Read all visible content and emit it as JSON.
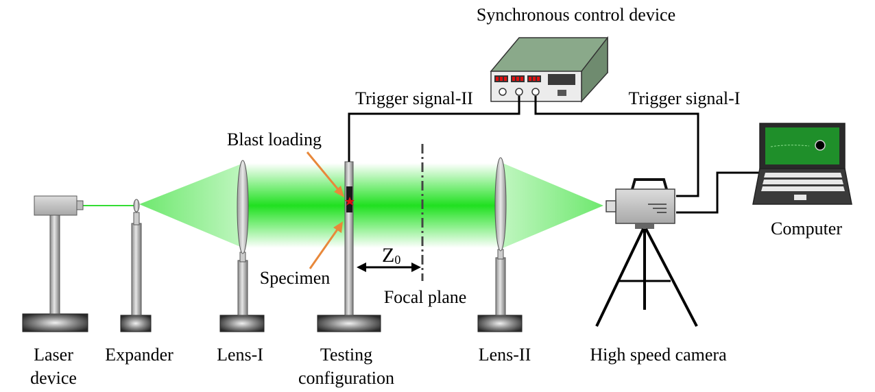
{
  "labels": {
    "sync_device": "Synchronous control device",
    "trigger_2": "Trigger signal-II",
    "trigger_1": "Trigger signal-I",
    "blast_loading": "Blast loading",
    "specimen": "Specimen",
    "z0_main": "Z",
    "z0_sub": "0",
    "focal_plane": "Focal plane",
    "computer": "Computer",
    "laser_line1": "Laser",
    "laser_line2": "device",
    "expander": "Expander",
    "lens1": "Lens-I",
    "testing_line1": "Testing",
    "testing_line2": "configuration",
    "lens2": "Lens-II",
    "camera": "High speed camera"
  },
  "colors": {
    "beam_green": "#33dd33",
    "beam_core": "#00e000",
    "arrow_orange": "#e8883a",
    "led_red": "#e01010",
    "screen_green": "#1f8f2a"
  }
}
